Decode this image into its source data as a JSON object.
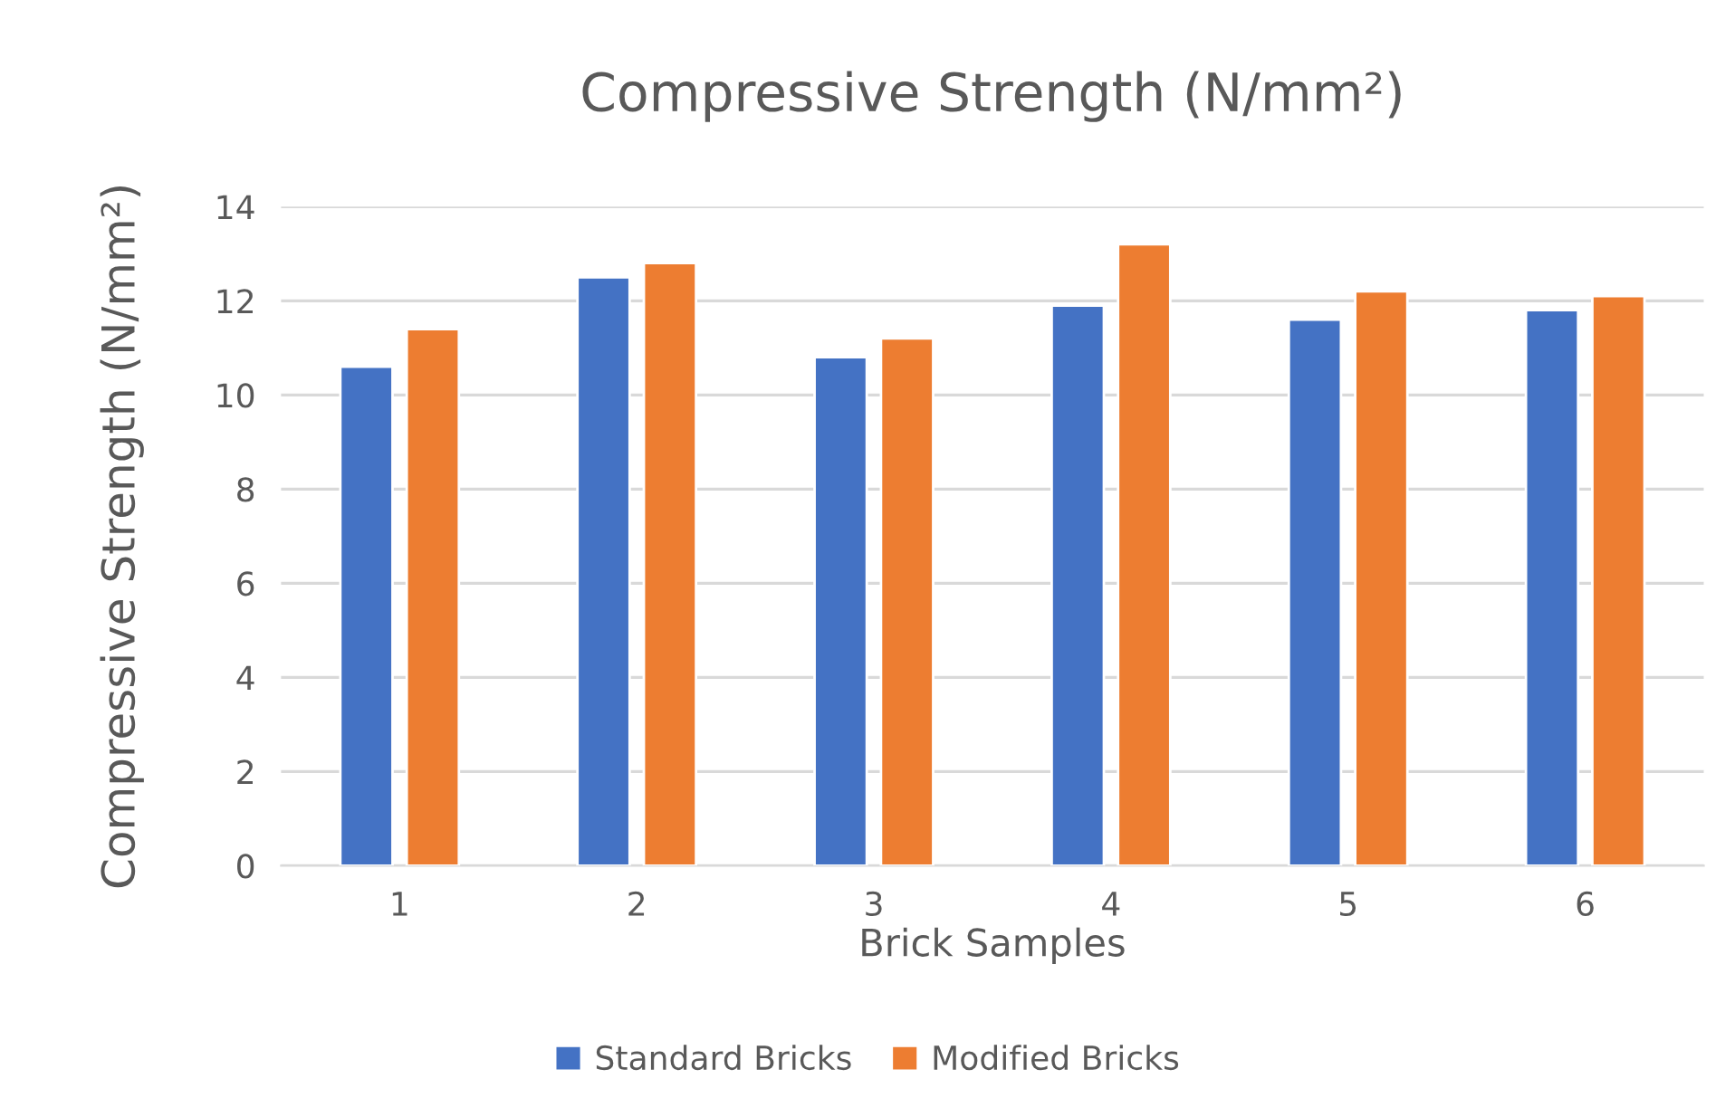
{
  "chart_data": {
    "type": "bar",
    "title": "Compressive Strength (N/mm²)",
    "xlabel": "Brick Samples",
    "ylabel": "Compressive Strength (N/mm²)",
    "categories": [
      "1",
      "2",
      "3",
      "4",
      "5",
      "6"
    ],
    "series": [
      {
        "name": "Standard Bricks",
        "color": "#4472c4",
        "values": [
          10.6,
          12.5,
          10.8,
          11.9,
          11.6,
          11.8
        ]
      },
      {
        "name": "Modified Bricks",
        "color": "#ed7d31",
        "values": [
          11.4,
          12.8,
          11.2,
          13.2,
          12.2,
          12.1
        ]
      }
    ],
    "ylim": [
      0,
      14
    ],
    "yticks": [
      0,
      2,
      4,
      6,
      8,
      10,
      12,
      14
    ],
    "grid": "y",
    "legend": "bottom"
  }
}
